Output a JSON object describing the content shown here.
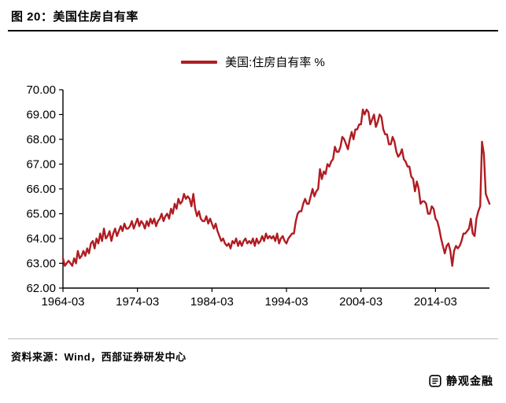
{
  "figure": {
    "title": "图 20：美国住房自有率",
    "legend_label": "美国:住房自有率 %",
    "source": "资料来源：Wind，西部证券研发中心",
    "watermark": "静观金融"
  },
  "colors": {
    "line": "#b01c22",
    "axis": "#000000"
  },
  "chart_data": {
    "type": "line",
    "title": "图 20：美国住房自有率",
    "series_name": "美国:住房自有率 %",
    "unit": "%",
    "x_period": "quarterly",
    "x_first_label": "1964-03",
    "x_tick_labels": [
      "1964-03",
      "1974-03",
      "1984-03",
      "1994-03",
      "2004-03",
      "2014-03"
    ],
    "x_tick_indices": [
      0,
      40,
      80,
      120,
      160,
      200
    ],
    "y_ticks": [
      62,
      63,
      64,
      65,
      66,
      67,
      68,
      69,
      70
    ],
    "y_tick_labels": [
      "62.00",
      "63.00",
      "64.00",
      "65.00",
      "66.00",
      "67.00",
      "68.00",
      "69.00",
      "70.00"
    ],
    "ylim": [
      62,
      70
    ],
    "grid": false,
    "legend_position": "top-center",
    "line_color": "#b01c22",
    "values": [
      63.2,
      62.9,
      63.0,
      63.1,
      63.0,
      62.9,
      63.2,
      63.0,
      63.5,
      63.2,
      63.3,
      63.5,
      63.3,
      63.6,
      63.4,
      63.8,
      63.9,
      63.6,
      64.0,
      63.8,
      64.2,
      63.9,
      64.4,
      64.0,
      64.1,
      64.3,
      63.9,
      64.2,
      64.4,
      64.1,
      64.3,
      64.5,
      64.3,
      64.6,
      64.4,
      64.4,
      64.5,
      64.7,
      64.4,
      64.6,
      64.8,
      64.5,
      64.7,
      64.6,
      64.4,
      64.7,
      64.5,
      64.8,
      64.6,
      64.8,
      64.5,
      64.7,
      64.8,
      65.0,
      64.7,
      64.9,
      65.0,
      64.8,
      65.2,
      65.0,
      65.4,
      65.2,
      65.6,
      65.4,
      65.5,
      65.8,
      65.6,
      65.7,
      65.6,
      65.3,
      65.8,
      65.2,
      64.9,
      65.1,
      64.8,
      64.7,
      64.7,
      64.9,
      64.6,
      64.8,
      64.6,
      64.4,
      64.6,
      64.3,
      64.1,
      63.9,
      64.0,
      63.8,
      63.7,
      63.8,
      63.6,
      63.9,
      63.8,
      64.0,
      63.7,
      63.9,
      63.7,
      63.9,
      64.0,
      63.8,
      63.9,
      63.8,
      64.0,
      63.7,
      64.0,
      63.8,
      63.9,
      64.1,
      63.9,
      64.2,
      64.0,
      64.1,
      64.0,
      64.1,
      63.9,
      64.2,
      63.8,
      64.0,
      64.1,
      63.9,
      63.8,
      64.0,
      64.1,
      64.2,
      64.2,
      64.7,
      65.0,
      65.1,
      65.1,
      65.4,
      65.6,
      65.4,
      65.4,
      65.7,
      66.0,
      65.7,
      65.9,
      66.0,
      66.8,
      66.4,
      66.7,
      66.6,
      67.0,
      66.9,
      67.1,
      67.2,
      67.7,
      67.5,
      67.5,
      67.7,
      68.1,
      68.0,
      67.8,
      67.6,
      68.0,
      68.3,
      68.0,
      68.4,
      68.4,
      68.6,
      68.6,
      69.2,
      69.0,
      69.2,
      69.1,
      68.6,
      68.8,
      69.0,
      68.5,
      68.7,
      69.0,
      68.9,
      68.4,
      68.2,
      68.2,
      67.8,
      67.8,
      68.1,
      67.9,
      67.5,
      67.3,
      67.4,
      67.6,
      67.2,
      67.1,
      66.9,
      66.9,
      66.5,
      66.4,
      65.9,
      66.3,
      66.0,
      65.4,
      65.5,
      65.5,
      65.4,
      65.0,
      65.0,
      65.3,
      65.2,
      64.8,
      64.7,
      64.4,
      64.0,
      63.7,
      63.4,
      63.7,
      63.8,
      63.5,
      62.9,
      63.5,
      63.7,
      63.6,
      63.7,
      63.9,
      64.2,
      64.2,
      64.3,
      64.4,
      64.8,
      64.2,
      64.1,
      64.8,
      65.1,
      65.3,
      67.9,
      67.4,
      65.8,
      65.6,
      65.4
    ]
  }
}
